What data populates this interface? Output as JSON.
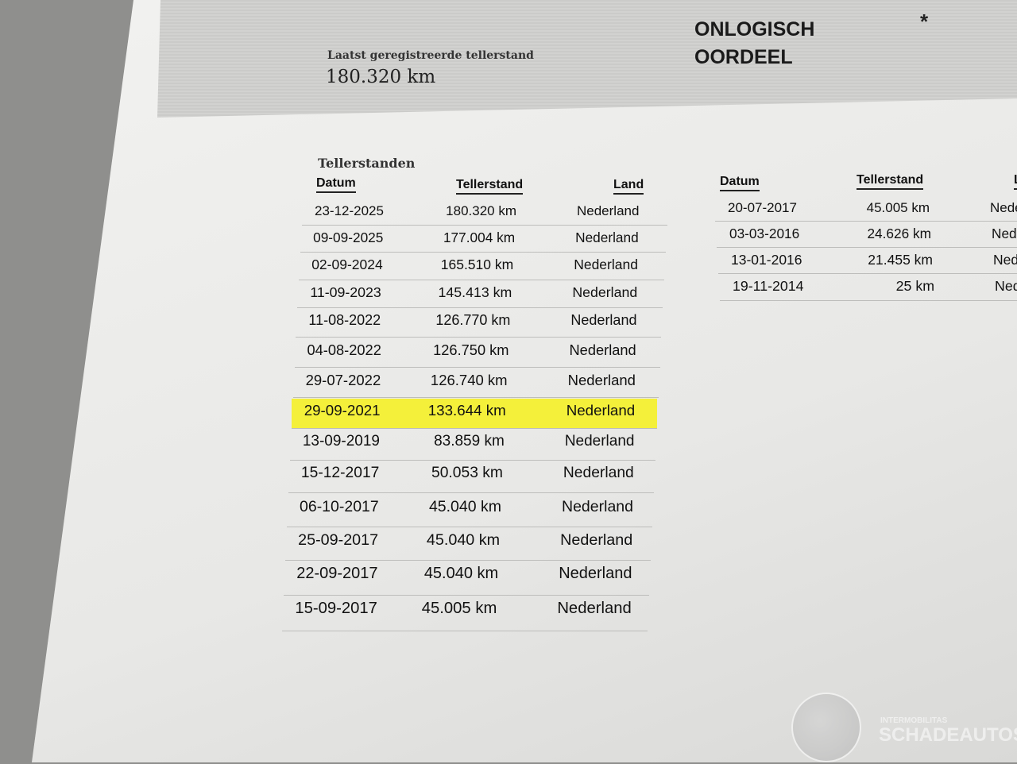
{
  "header": {
    "last_odometer_label": "Laatst geregistreerde tellerstand",
    "last_odometer_value": "180.320 km",
    "verdict_line1": "ONLOGISCH",
    "verdict_line2": "OORDEEL",
    "asterisk": "*"
  },
  "table": {
    "title": "Tellerstanden",
    "columns": [
      "Datum",
      "Tellerstand",
      "Land"
    ],
    "highlight_color": "#f4f03a",
    "rows": [
      {
        "date": "23-12-2025",
        "km": "180.320 km",
        "country": "Nederland"
      },
      {
        "date": "09-09-2025",
        "km": "177.004 km",
        "country": "Nederland"
      },
      {
        "date": "02-09-2024",
        "km": "165.510 km",
        "country": "Nederland"
      },
      {
        "date": "11-09-2023",
        "km": "145.413 km",
        "country": "Nederland"
      },
      {
        "date": "11-08-2022",
        "km": "126.770 km",
        "country": "Nederland"
      },
      {
        "date": "04-08-2022",
        "km": "126.750 km",
        "country": "Nederland"
      },
      {
        "date": "29-07-2022",
        "km": "126.740 km",
        "country": "Nederland"
      },
      {
        "date": "29-09-2021",
        "km": "133.644 km",
        "country": "Nederland",
        "highlighted": true
      },
      {
        "date": "13-09-2019",
        "km": "83.859 km",
        "country": "Nederland"
      },
      {
        "date": "15-12-2017",
        "km": "50.053 km",
        "country": "Nederland"
      },
      {
        "date": "06-10-2017",
        "km": "45.040 km",
        "country": "Nederland"
      },
      {
        "date": "25-09-2017",
        "km": "45.040 km",
        "country": "Nederland"
      },
      {
        "date": "22-09-2017",
        "km": "45.040 km",
        "country": "Nederland"
      },
      {
        "date": "15-09-2017",
        "km": "45.005 km",
        "country": "Nederland"
      }
    ],
    "rows_right": [
      {
        "date": "20-07-2017",
        "km": "45.005 km",
        "country": "Nederland"
      },
      {
        "date": "03-03-2016",
        "km": "24.626 km",
        "country": "Nederland"
      },
      {
        "date": "13-01-2016",
        "km": "21.455 km",
        "country": "Nederland"
      },
      {
        "date": "19-11-2014",
        "km": "25 km",
        "country": "Nederland"
      }
    ]
  },
  "watermark": {
    "line1": "INTERMOBILITAS",
    "line2": "SCHADEAUTOS.NL"
  }
}
